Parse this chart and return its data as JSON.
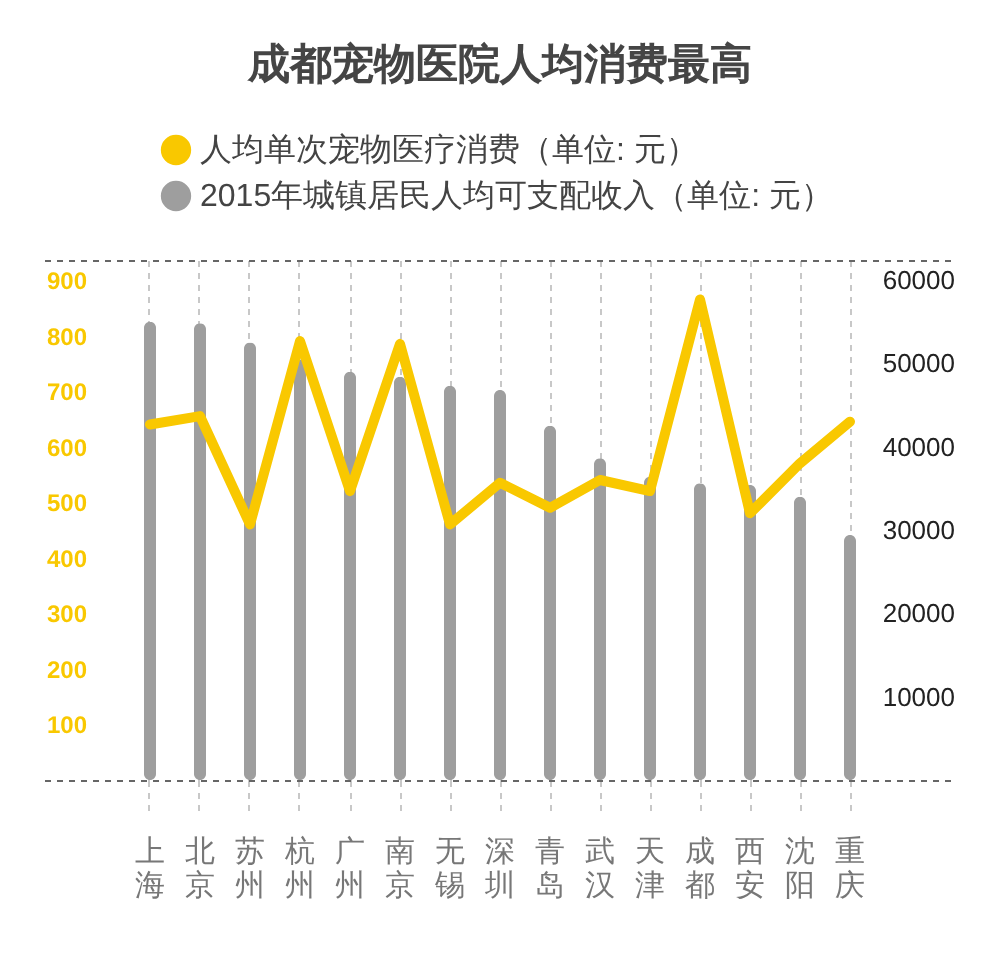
{
  "chart_data": {
    "type": "bar",
    "title": "成都宠物医院人均消费最高",
    "categories": [
      "上海",
      "北京",
      "苏州",
      "杭州",
      "广州",
      "南京",
      "无锡",
      "深圳",
      "青岛",
      "武汉",
      "天津",
      "成都",
      "西安",
      "沈阳",
      "重庆"
    ],
    "series": [
      {
        "name": "人均单次宠物医疗消费（单位: 元）",
        "type": "line",
        "color": "#f9c800",
        "values": [
          640,
          655,
          460,
          790,
          520,
          785,
          460,
          535,
          490,
          540,
          520,
          865,
          480,
          570,
          645
        ]
      },
      {
        "name": "2015年城镇居民人均可支配收入（单位: 元）",
        "axis": "y2",
        "color": "#9e9e9e",
        "values": [
          55000,
          54800,
          52500,
          50500,
          49000,
          48400,
          47300,
          46800,
          42500,
          38600,
          36400,
          35600,
          35400,
          34000,
          29400
        ]
      }
    ],
    "ylim": [
      0,
      936
    ],
    "yticks": [
      100,
      200,
      300,
      400,
      500,
      600,
      700,
      800,
      900
    ],
    "y2lim": [
      0,
      62400
    ],
    "y2ticks": [
      10000,
      20000,
      30000,
      40000,
      50000,
      60000
    ],
    "grid": "x",
    "legend": "top",
    "line_style": "solid"
  }
}
